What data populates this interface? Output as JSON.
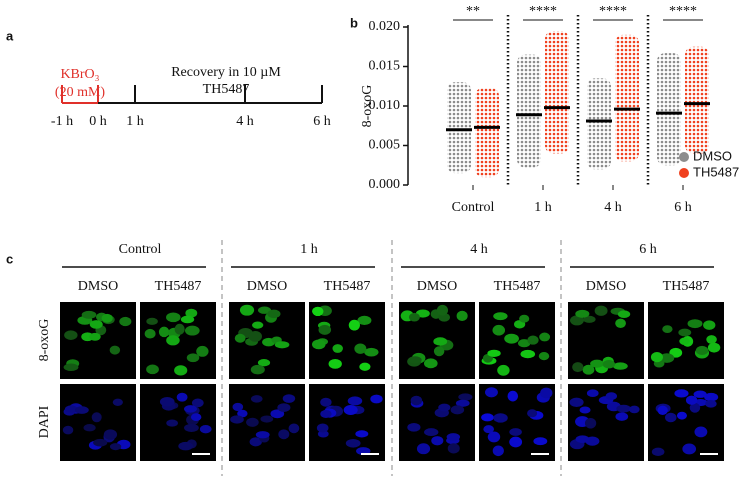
{
  "panel_labels": [
    "a",
    "b",
    "c"
  ],
  "timeline": {
    "treatment": "KBrO₃",
    "dose": "(20 mM)",
    "recovery": "Recovery in 10 µM",
    "drug": "TH5487",
    "ticks": [
      "-1 h",
      "0 h",
      "1 h",
      "4 h",
      "6 h"
    ]
  },
  "chart_data": {
    "type": "strip",
    "ylabel": "8-oxoG",
    "categories": [
      "Control",
      "1 h",
      "4 h",
      "6 h"
    ],
    "series": [
      {
        "name": "DMSO",
        "color": "#8c8c8c",
        "values": [
          0.007,
          0.0089,
          0.0081,
          0.0091
        ],
        "low": [
          0.0015,
          0.0022,
          0.002,
          0.0025
        ],
        "high": [
          0.013,
          0.0165,
          0.0135,
          0.0167
        ]
      },
      {
        "name": "TH5487",
        "color": "#f0401e",
        "values": [
          0.0073,
          0.0098,
          0.0096,
          0.0103
        ],
        "low": [
          0.001,
          0.004,
          0.003,
          0.004
        ],
        "high": [
          0.0123,
          0.0195,
          0.019,
          0.0175
        ]
      }
    ],
    "significance": [
      "**",
      "****",
      "****",
      "****"
    ],
    "ylim": [
      0,
      0.02
    ],
    "yticks": [
      {
        "value": 0,
        "label": "0.000"
      },
      0.005,
      {
        "value": 0.01,
        "label": "0.010"
      },
      0.015,
      {
        "value": 0.02,
        "label": "0.020"
      }
    ],
    "legend": "right"
  },
  "images": {
    "groups": [
      "Control",
      "1 h",
      "4 h",
      "6 h"
    ],
    "columns": [
      "DMSO",
      "TH5487"
    ],
    "rows": [
      "8-oxoG",
      "DAPI"
    ]
  }
}
